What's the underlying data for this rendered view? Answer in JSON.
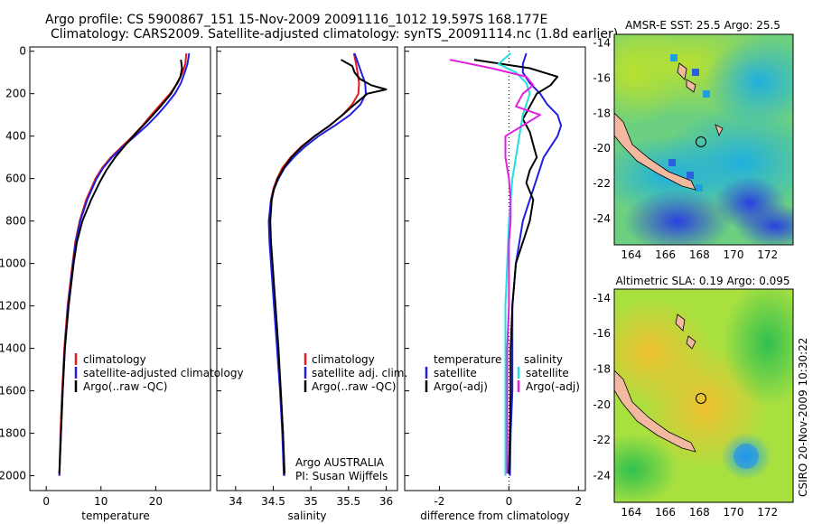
{
  "header": {
    "line1": "Argo profile: CS 5900867_151 15-Nov-2009 20091116_1012 19.597S 168.177E",
    "line2": "Climatology: CARS2009. Satellite-adjusted climatology: synTS_20091114.nc (1.8d earlier)"
  },
  "side_label": "CSIRO 20-Nov-2009 10:30:22",
  "colors": {
    "climatology": "#e41a1c",
    "satellite": "#1f1fe0",
    "argo": "#000000",
    "argo_adj_diff": "#e020e0",
    "satellite_diff": "#20e0e0"
  },
  "chart_data": [
    {
      "type": "line",
      "id": "temperature",
      "xlabel": "temperature",
      "ylabel": "",
      "xlim": [
        -3,
        30
      ],
      "ylim": [
        2070,
        -20
      ],
      "xticks": [
        "0",
        "10",
        "20"
      ],
      "xtick_values": [
        0,
        10,
        20
      ],
      "yticks": [
        "0",
        "200",
        "400",
        "600",
        "800",
        "1000",
        "1200",
        "1400",
        "1600",
        "1800",
        "2000"
      ],
      "ytick_values": [
        0,
        200,
        400,
        600,
        800,
        1000,
        1200,
        1400,
        1600,
        1800,
        2000
      ],
      "legend": {
        "placement": "lower-right",
        "items": [
          "climatology",
          "satellite-adjusted climatology",
          "Argo(..raw -QC)"
        ]
      },
      "series": [
        {
          "name": "climatology",
          "color": "#e41a1c",
          "depth": [
            10,
            60,
            100,
            150,
            200,
            250,
            300,
            350,
            400,
            450,
            500,
            550,
            600,
            700,
            800,
            900,
            1000,
            1200,
            1400,
            1600,
            1800,
            2000
          ],
          "values": [
            25.6,
            25.4,
            24.9,
            24.0,
            22.6,
            20.9,
            19.2,
            17.6,
            15.8,
            13.8,
            11.8,
            10.2,
            9.0,
            7.3,
            6.1,
            5.3,
            4.8,
            3.9,
            3.3,
            2.9,
            2.6,
            2.4
          ]
        },
        {
          "name": "satellite-adjusted climatology",
          "color": "#1f1fe0",
          "depth": [
            10,
            60,
            100,
            150,
            200,
            250,
            300,
            350,
            400,
            450,
            500,
            550,
            600,
            700,
            800,
            900,
            1000,
            1200,
            1400,
            1600,
            1800,
            2000
          ],
          "values": [
            26.1,
            25.8,
            25.3,
            24.6,
            23.5,
            22.0,
            20.3,
            18.4,
            16.2,
            14.0,
            12.0,
            10.4,
            9.2,
            7.5,
            6.2,
            5.4,
            4.9,
            4.0,
            3.4,
            3.0,
            2.7,
            2.4
          ]
        },
        {
          "name": "Argo(..raw -QC)",
          "color": "#000000",
          "depth": [
            40,
            80,
            120,
            160,
            200,
            260,
            320,
            380,
            440,
            500,
            560,
            620,
            700,
            800,
            900,
            1000,
            1200,
            1400,
            1600,
            1800,
            1990
          ],
          "values": [
            24.6,
            24.8,
            24.5,
            23.7,
            22.8,
            20.9,
            18.8,
            16.6,
            14.5,
            12.6,
            11.0,
            9.7,
            8.2,
            6.6,
            5.6,
            5.0,
            4.1,
            3.4,
            3.0,
            2.7,
            2.4
          ]
        }
      ]
    },
    {
      "type": "line",
      "id": "salinity",
      "xlabel": "salinity",
      "ylabel": "",
      "xlim": [
        33.75,
        36.15
      ],
      "ylim": [
        2070,
        -20
      ],
      "xticks": [
        "34",
        "34.5",
        "35",
        "35.5",
        "36"
      ],
      "xtick_values": [
        34,
        34.5,
        35,
        35.5,
        36
      ],
      "yticks": [],
      "legend": {
        "placement": "lower-right",
        "items": [
          "climatology",
          "satellite adj. clim.",
          "Argo(..raw -QC)"
        ]
      },
      "annotation": {
        "line1": "Argo AUSTRALIA",
        "line2": "PI: Susan Wijffels"
      },
      "series": [
        {
          "name": "climatology",
          "color": "#e41a1c",
          "depth": [
            10,
            60,
            100,
            150,
            200,
            250,
            300,
            350,
            400,
            450,
            500,
            550,
            600,
            650,
            700,
            800,
            900,
            1000,
            1200,
            1400,
            1600,
            1800,
            2000
          ],
          "values": [
            35.57,
            35.6,
            35.62,
            35.64,
            35.63,
            35.55,
            35.42,
            35.25,
            35.05,
            34.87,
            34.73,
            34.62,
            34.55,
            34.5,
            34.47,
            34.45,
            34.46,
            34.48,
            34.52,
            34.56,
            34.6,
            34.63,
            34.65
          ]
        },
        {
          "name": "satellite adj. clim.",
          "color": "#1f1fe0",
          "depth": [
            10,
            60,
            100,
            150,
            200,
            250,
            300,
            350,
            400,
            450,
            500,
            550,
            600,
            650,
            700,
            800,
            900,
            1000,
            1200,
            1400,
            1600,
            1800,
            2000
          ],
          "values": [
            35.58,
            35.63,
            35.67,
            35.72,
            35.73,
            35.66,
            35.52,
            35.32,
            35.1,
            34.92,
            34.77,
            34.65,
            34.57,
            34.51,
            34.47,
            34.44,
            34.45,
            34.47,
            34.51,
            34.55,
            34.59,
            34.62,
            34.64
          ]
        },
        {
          "name": "Argo(..raw -QC)",
          "color": "#000000",
          "depth": [
            40,
            70,
            100,
            130,
            160,
            180,
            200,
            230,
            260,
            300,
            350,
            400,
            450,
            500,
            550,
            600,
            650,
            700,
            800,
            900,
            1000,
            1200,
            1400,
            1600,
            1800,
            1990
          ],
          "values": [
            35.4,
            35.55,
            35.58,
            35.65,
            35.8,
            36.0,
            35.75,
            35.65,
            35.55,
            35.42,
            35.25,
            35.05,
            34.88,
            34.74,
            34.64,
            34.56,
            34.51,
            34.48,
            34.46,
            34.47,
            34.49,
            34.53,
            34.57,
            34.6,
            34.63,
            34.65
          ]
        }
      ]
    },
    {
      "type": "line",
      "id": "difference",
      "xlabel": "difference from climatology",
      "ylabel": "",
      "xlim": [
        -3.0,
        2.2
      ],
      "ylim": [
        2070,
        -20
      ],
      "xticks": [
        "-2",
        "0",
        "2"
      ],
      "xtick_values": [
        -2,
        0,
        2
      ],
      "yticks": [],
      "legend": {
        "placement": "lower-right",
        "temperature_title": "temperature",
        "salinity_title": "salinity",
        "items": [
          "satellite",
          "Argo(-adj)",
          "satellite",
          "Argo(-adj)"
        ]
      },
      "series": [
        {
          "name": "temperature satellite",
          "color": "#1f1fe0",
          "depth": [
            10,
            60,
            100,
            150,
            200,
            250,
            300,
            350,
            400,
            500,
            600,
            700,
            800,
            1000,
            1200,
            1400,
            1600,
            1800,
            2000
          ],
          "values": [
            0.5,
            0.4,
            0.4,
            0.6,
            0.9,
            1.1,
            1.4,
            1.5,
            1.4,
            1.0,
            0.8,
            0.6,
            0.4,
            0.2,
            0.1,
            0.1,
            0.1,
            0.05,
            0.03
          ]
        },
        {
          "name": "temperature Argo(-adj)",
          "color": "#000000",
          "depth": [
            40,
            80,
            120,
            160,
            200,
            260,
            320,
            380,
            440,
            500,
            560,
            620,
            700,
            800,
            900,
            1000,
            1200,
            1400,
            1600,
            1800,
            1990
          ],
          "values": [
            -1.0,
            0.6,
            1.4,
            1.2,
            0.8,
            0.6,
            0.4,
            0.6,
            0.7,
            0.8,
            0.6,
            0.5,
            0.7,
            0.6,
            0.4,
            0.2,
            0.1,
            0.05,
            0.05,
            0.03,
            0.0
          ]
        },
        {
          "name": "salinity satellite",
          "color": "#20e0e0",
          "depth": [
            10,
            60,
            100,
            150,
            200,
            300,
            400,
            500,
            600,
            700,
            800,
            1000,
            1200,
            1400,
            1600,
            1800,
            2000
          ],
          "values": [
            0.05,
            -0.3,
            0.2,
            0.5,
            0.6,
            0.4,
            0.3,
            0.2,
            0.1,
            0.05,
            0.0,
            -0.05,
            -0.1,
            -0.1,
            -0.1,
            -0.1,
            -0.1
          ]
        },
        {
          "name": "salinity Argo(-adj)",
          "color": "#e020e0",
          "depth": [
            40,
            80,
            120,
            160,
            200,
            260,
            300,
            400,
            500,
            600,
            700,
            800,
            900,
            1000,
            1200,
            1400,
            1600,
            1800,
            1990
          ],
          "values": [
            -1.7,
            -0.5,
            0.5,
            0.7,
            0.4,
            0.2,
            0.9,
            -0.1,
            -0.1,
            0.0,
            0.05,
            0.05,
            0.0,
            0.0,
            0.0,
            -0.05,
            -0.05,
            -0.05,
            -0.05
          ]
        }
      ]
    },
    {
      "type": "heatmap",
      "id": "sst_map",
      "title": "AMSR-E SST: 25.5  Argo: 25.5",
      "xlim": [
        163,
        173.5
      ],
      "ylim": [
        -25.5,
        -13.5
      ],
      "xticks": [
        "164",
        "166",
        "168",
        "170",
        "172"
      ],
      "xtick_values": [
        164,
        166,
        168,
        170,
        172
      ],
      "yticks": [
        "-14",
        "-16",
        "-18",
        "-20",
        "-22",
        "-24"
      ],
      "ytick_values": [
        -14,
        -16,
        -18,
        -20,
        -22,
        -24
      ],
      "marker": {
        "lon": 168.177,
        "lat": -19.597
      }
    },
    {
      "type": "heatmap",
      "id": "sla_map",
      "title": "Altimetric SLA: 0.19  Argo: 0.095",
      "xlim": [
        163,
        173.5
      ],
      "ylim": [
        -25.5,
        -13.5
      ],
      "xticks": [
        "164",
        "166",
        "168",
        "170",
        "172"
      ],
      "xtick_values": [
        164,
        166,
        168,
        170,
        172
      ],
      "yticks": [
        "-14",
        "-16",
        "-18",
        "-20",
        "-22",
        "-24"
      ],
      "ytick_values": [
        -14,
        -16,
        -18,
        -20,
        -22,
        -24
      ],
      "marker": {
        "lon": 168.177,
        "lat": -19.597
      }
    }
  ]
}
